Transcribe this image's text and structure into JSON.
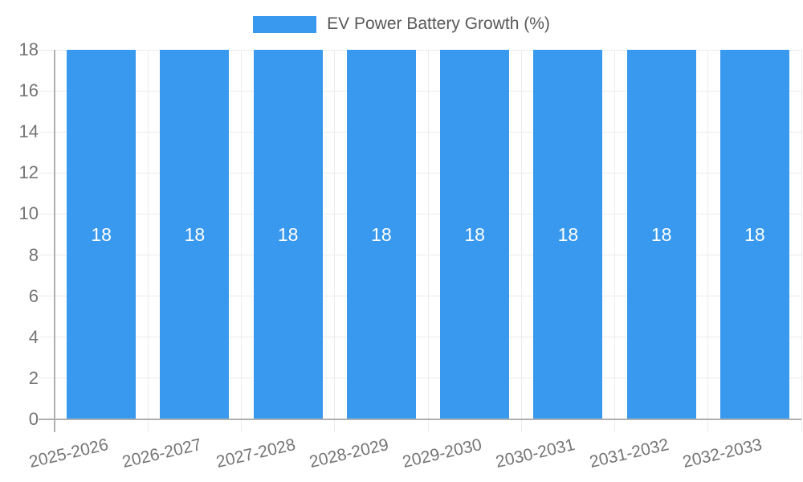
{
  "legend": {
    "items": [
      {
        "label": "EV Power Battery Growth (%)",
        "swatch_color": "#3999EE"
      }
    ],
    "position": "top-center"
  },
  "chart_data": {
    "type": "bar",
    "categories": [
      "2025-2026",
      "2026-2027",
      "2027-2028",
      "2028-2029",
      "2029-2030",
      "2030-2031",
      "2031-2032",
      "2032-2033"
    ],
    "series": [
      {
        "name": "EV Power Battery Growth (%)",
        "values": [
          18,
          18,
          18,
          18,
          18,
          18,
          18,
          18
        ]
      }
    ],
    "show_value_labels": true,
    "value_label_color": "#FFFFFF",
    "title": "",
    "xlabel": "",
    "ylabel": "",
    "ylim": [
      0,
      18
    ],
    "yticks": [
      0,
      2,
      4,
      6,
      8,
      10,
      12,
      14,
      16,
      18
    ],
    "grid": true,
    "x_tick_label_rotation_deg": 13,
    "colors": {
      "bar": "#3999EE",
      "gridline": "#EBEBEB",
      "axis_line": "#B0B0B0",
      "tick_label": "#757575",
      "legend_text": "#595959",
      "background": "#FFFFFF"
    }
  }
}
